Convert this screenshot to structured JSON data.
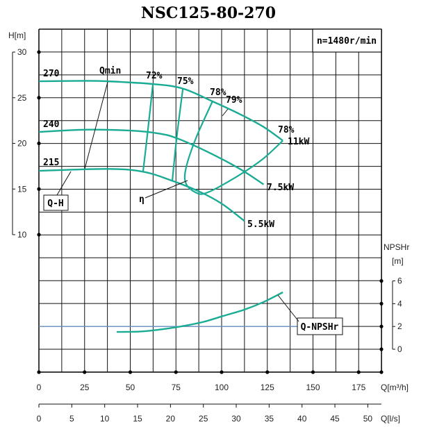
{
  "chart_data": {
    "type": "line",
    "title": "NSC125-80-270",
    "speed_label": "n=1480r/min",
    "x_axis": {
      "label": "Q[m³/h]",
      "range": [
        0,
        187.5
      ],
      "ticks": [
        0,
        25,
        50,
        75,
        100,
        125,
        150,
        175
      ],
      "grid_step": 12.5
    },
    "x2_axis": {
      "label": "Q[l/s]",
      "ticks": [
        0,
        5,
        10,
        15,
        20,
        25,
        30,
        35,
        40,
        45,
        50
      ]
    },
    "y_axis": {
      "label": "H[m]",
      "ticks": [
        10,
        15,
        20,
        25,
        30
      ],
      "grid_step": 2.5
    },
    "y2_axis": {
      "label_line1": "NPSHr",
      "label_line2": "[m]",
      "ticks": [
        0,
        2,
        4,
        6
      ]
    },
    "grid": true,
    "line_color": "#1aab94",
    "reference_line_color": "#6a8fc0",
    "qh_series": [
      {
        "name": "270",
        "points": [
          [
            0,
            26.8
          ],
          [
            25,
            26.85
          ],
          [
            37.6,
            26.8
          ],
          [
            62.4,
            26.5
          ],
          [
            78.8,
            26.0
          ],
          [
            95,
            24.6
          ],
          [
            110,
            23.2
          ],
          [
            123,
            21.8
          ],
          [
            133.5,
            20.3
          ]
        ],
        "end_label": "11kW"
      },
      {
        "name": "240",
        "points": [
          [
            0,
            21.25
          ],
          [
            25,
            21.5
          ],
          [
            50,
            21.4
          ],
          [
            65,
            21.1
          ],
          [
            75,
            20.6
          ],
          [
            92,
            19.1
          ],
          [
            110,
            17.2
          ],
          [
            123,
            15.5
          ]
        ],
        "end_label": "7.5kW"
      },
      {
        "name": "215",
        "points": [
          [
            0,
            17.0
          ],
          [
            37.6,
            17.2
          ],
          [
            57,
            16.9
          ],
          [
            73,
            15.9
          ],
          [
            88,
            14.7
          ],
          [
            100,
            13.4
          ],
          [
            112.5,
            11.5
          ]
        ],
        "end_label": "5.5kW"
      }
    ],
    "efficiency_lines": [
      {
        "label": "72%",
        "points": [
          [
            62.4,
            26.5
          ],
          [
            59.5,
            21.2
          ],
          [
            57,
            16.9
          ]
        ]
      },
      {
        "label": "75%",
        "points": [
          [
            78.8,
            26.0
          ],
          [
            75.5,
            20.8
          ],
          [
            73,
            15.9
          ]
        ]
      }
    ],
    "efficiency_contour": {
      "label_left": "78%",
      "label_center": "79%",
      "label_right": "78%",
      "points": [
        [
          95,
          24.6
        ],
        [
          86,
          20.6
        ],
        [
          80.5,
          17.3
        ],
        [
          80.5,
          15.6
        ],
        [
          86,
          14.6
        ],
        [
          92,
          14.6
        ],
        [
          107,
          16.2
        ],
        [
          122,
          18.2
        ],
        [
          133.5,
          20.3
        ]
      ]
    },
    "annotations": {
      "qmin": "Qmin",
      "qh": "Q-H",
      "eta": "η",
      "qnpshr": "Q-NPSHr"
    },
    "npshr_series": {
      "name": "Q-NPSHr",
      "points": [
        [
          42.6,
          1.52
        ],
        [
          55,
          1.55
        ],
        [
          65,
          1.7
        ],
        [
          77.6,
          2.0
        ],
        [
          90,
          2.4
        ],
        [
          100.4,
          2.9
        ],
        [
          112,
          3.45
        ],
        [
          123,
          4.15
        ],
        [
          133.5,
          5.0
        ]
      ]
    },
    "npshr_reference": 2
  }
}
